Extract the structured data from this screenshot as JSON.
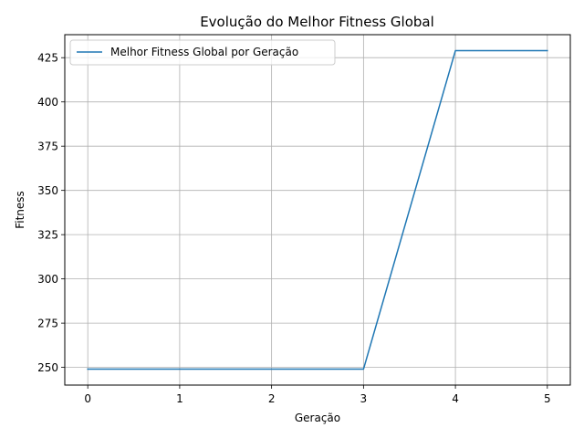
{
  "chart_data": {
    "type": "line",
    "title": "Evolução do Melhor Fitness Global",
    "xlabel": "Geração",
    "ylabel": "Fitness",
    "x": [
      0,
      1,
      2,
      3,
      4,
      5
    ],
    "series": [
      {
        "name": "Melhor Fitness Global por Geração",
        "values": [
          249,
          249,
          249,
          249,
          429,
          429
        ],
        "color": "#1f77b4"
      }
    ],
    "xlim": [
      -0.25,
      5.25
    ],
    "ylim": [
      240,
      438
    ],
    "xticks": [
      "0",
      "1",
      "2",
      "3",
      "4",
      "5"
    ],
    "yticks": [
      "250",
      "275",
      "300",
      "325",
      "350",
      "375",
      "400",
      "425"
    ],
    "grid": true,
    "legend_position": "upper-left"
  }
}
